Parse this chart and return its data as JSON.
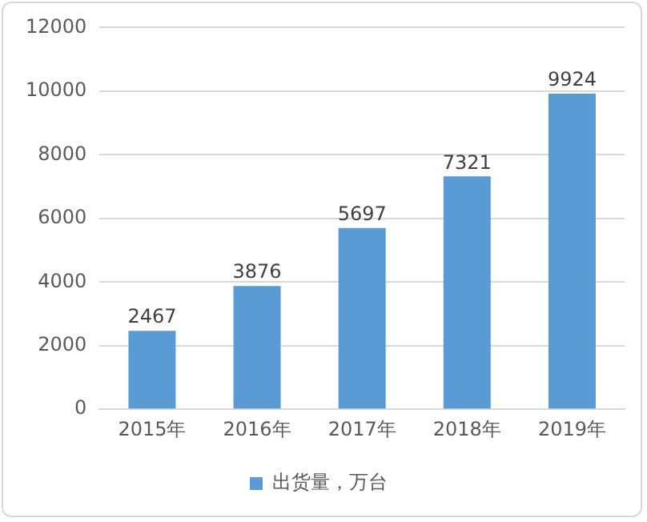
{
  "chart_data": {
    "type": "bar",
    "categories": [
      "2015年",
      "2016年",
      "2017年",
      "2018年",
      "2019年"
    ],
    "series": [
      {
        "name": "出货量，万台",
        "color": "#5b9bd5",
        "values": [
          2467,
          3876,
          5697,
          7321,
          9924
        ]
      }
    ],
    "ylim": [
      0,
      12000
    ],
    "yticks": [
      0,
      2000,
      4000,
      6000,
      8000,
      10000,
      12000
    ],
    "grid": "y",
    "legend": "bottom",
    "data_labels": true
  }
}
